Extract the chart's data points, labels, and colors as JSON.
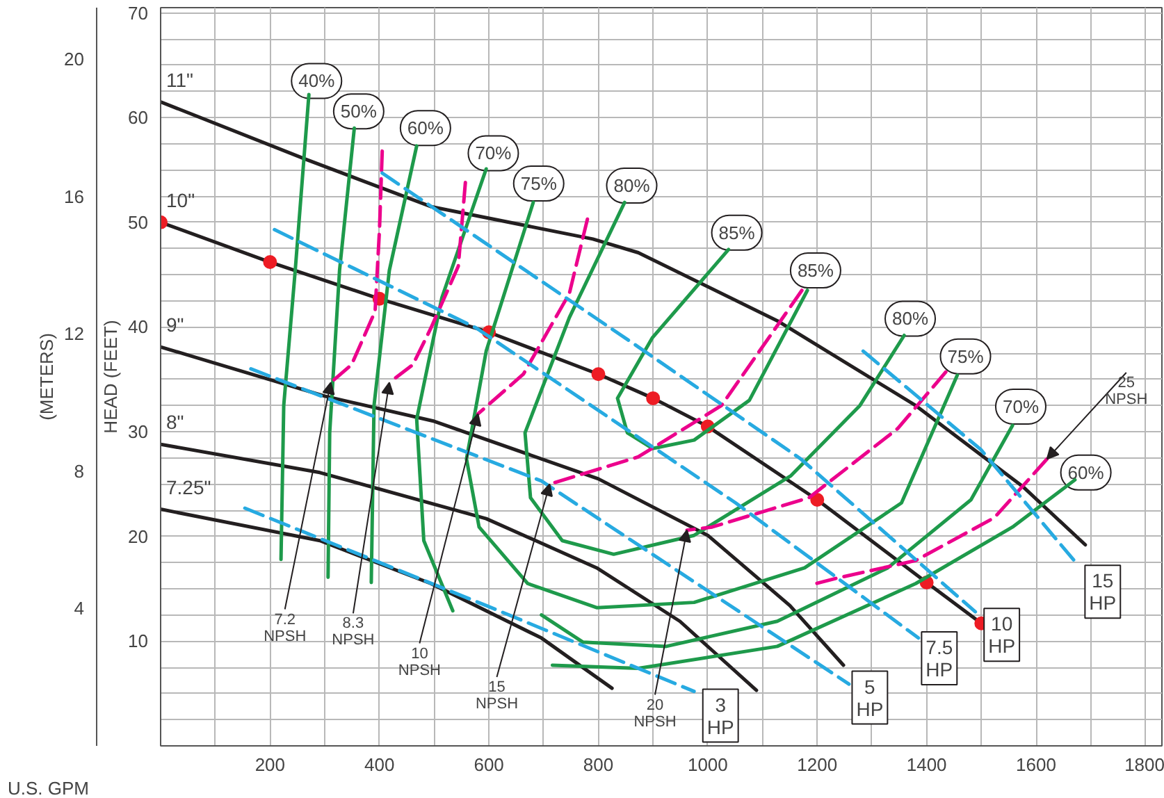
{
  "chart_data": {
    "type": "line",
    "xlabel": "U.S. GPM",
    "ylabel": "HEAD (FEET)",
    "y2label": "(METERS)",
    "xlim": [
      0,
      1830
    ],
    "ylim": [
      0,
      70.5
    ],
    "y2lim": [
      0,
      21.5
    ],
    "xticks": [
      {
        "value": 100,
        "label": null
      },
      200,
      {
        "value": 300,
        "label": null
      },
      400,
      {
        "value": 500,
        "label": null
      },
      600,
      {
        "value": 700,
        "label": null
      },
      800,
      {
        "value": 900,
        "label": null
      },
      1000,
      {
        "value": 1100,
        "label": null
      },
      1200,
      {
        "value": 1300,
        "label": null
      },
      1400,
      {
        "value": 1500,
        "label": null
      },
      1600,
      {
        "value": 1700,
        "label": null
      },
      1800
    ],
    "yticks": [
      {
        "value": 2.5,
        "label": null
      },
      {
        "value": 5,
        "label": null
      },
      {
        "value": 7.5,
        "label": null
      },
      10,
      {
        "value": 12.5,
        "label": null
      },
      {
        "value": 15,
        "label": null
      },
      {
        "value": 17.5,
        "label": null
      },
      20,
      {
        "value": 22.5,
        "label": null
      },
      {
        "value": 25,
        "label": null
      },
      {
        "value": 27.5,
        "label": null
      },
      30,
      {
        "value": 32.5,
        "label": null
      },
      {
        "value": 35,
        "label": null
      },
      {
        "value": 37.5,
        "label": null
      },
      40,
      {
        "value": 42.5,
        "label": null
      },
      {
        "value": 45,
        "label": null
      },
      {
        "value": 47.5,
        "label": null
      },
      50,
      {
        "value": 52.5,
        "label": null
      },
      {
        "value": 55,
        "label": null
      },
      {
        "value": 57.5,
        "label": null
      },
      60,
      {
        "value": 62.5,
        "label": null
      },
      {
        "value": 65,
        "label": null
      },
      {
        "value": 67.5,
        "label": null
      },
      70
    ],
    "y2ticks": [
      4,
      8,
      12,
      16,
      20
    ],
    "grid": true,
    "series": [
      {
        "name": "11\"",
        "color": "#231f20",
        "x": [
          0,
          266,
          494,
          790,
          873,
          1127,
          1380,
          1575,
          1690
        ],
        "values": [
          61.5,
          56,
          51.5,
          48.4,
          47.1,
          40.6,
          32.5,
          24.8,
          19.2
        ]
      },
      {
        "name": "10\"",
        "color": "#231f20",
        "x": [
          0,
          200,
          400,
          600,
          800,
          900,
          1000,
          1200,
          1400,
          1500
        ],
        "values": [
          50,
          46.2,
          42.7,
          39.5,
          35.5,
          33.2,
          30.5,
          23.5,
          15.6,
          11.7
        ]
      },
      {
        "name": "9\"",
        "color": "#231f20",
        "x": [
          0,
          300,
          500,
          800,
          1000,
          1150,
          1248
        ],
        "values": [
          38.1,
          33.4,
          31,
          25.5,
          20.1,
          13.4,
          7.7
        ]
      },
      {
        "name": "8\"",
        "color": "#231f20",
        "x": [
          0,
          291,
          595,
          797,
          949,
          1089
        ],
        "values": [
          28.8,
          26.1,
          21.7,
          17,
          11.9,
          5.3
        ]
      },
      {
        "name": "7.25\"",
        "color": "#231f20",
        "x": [
          0,
          291,
          494,
          696,
          825
        ],
        "values": [
          22.6,
          19.6,
          15.5,
          10.3,
          5.5
        ]
      },
      {
        "type": "scatter",
        "marker": "circle",
        "color": "#ed1c24",
        "x": [
          0,
          200,
          400,
          600,
          800,
          900,
          1000,
          1200,
          1400,
          1500
        ],
        "values": [
          50,
          46.2,
          42.7,
          39.5,
          35.5,
          33.2,
          30.5,
          23.5,
          15.6,
          11.7
        ]
      },
      {
        "color": "#1e9a4b",
        "x": [
          271,
          246,
          225,
          220
        ],
        "values": [
          62.2,
          45.4,
          32.5,
          17.8
        ]
      },
      {
        "color": "#1e9a4b",
        "x": [
          354,
          327,
          309,
          306
        ],
        "values": [
          59,
          45.4,
          29.9,
          16.1
        ]
      },
      {
        "color": "#1e9a4b",
        "x": [
          468,
          418,
          390,
          385
        ],
        "values": [
          57.3,
          45.4,
          32.5,
          15.6
        ]
      },
      {
        "color": "#1e9a4b",
        "x": [
          595,
          514,
          468,
          481,
          534
        ],
        "values": [
          55.1,
          42.8,
          31.2,
          19.6,
          12.9
        ]
      },
      {
        "color": "#1e9a4b",
        "x": [
          681,
          595,
          559,
          582,
          671,
          797,
          975,
          1177,
          1354,
          1456
        ],
        "values": [
          51.9,
          37.7,
          27.4,
          20.9,
          15.5,
          13.2,
          13.7,
          17,
          23.2,
          35.4
        ]
      },
      {
        "color": "#1e9a4b",
        "x": [
          848,
          747,
          666,
          676,
          734,
          828,
          975,
          1152,
          1278,
          1359
        ],
        "values": [
          51.9,
          40.9,
          29.9,
          23.7,
          19.6,
          18.3,
          20.1,
          25.8,
          32.5,
          39.2
        ]
      },
      {
        "color": "#1e9a4b",
        "x": [
          1038,
          899,
          835,
          853,
          899,
          975,
          1076,
          1182
        ],
        "values": [
          47.4,
          39,
          33.2,
          29.9,
          28.4,
          29.2,
          33,
          43.5
        ]
      },
      {
        "color": "#1e9a4b",
        "x": [
          696,
          772,
          924,
          1127,
          1329,
          1481,
          1557
        ],
        "values": [
          12.5,
          9.9,
          9.5,
          11.9,
          17,
          23.5,
          30.6
        ]
      },
      {
        "color": "#1e9a4b",
        "x": [
          716,
          873,
          1127,
          1380,
          1557,
          1671
        ],
        "values": [
          7.7,
          7.4,
          9.5,
          15.5,
          20.9,
          25.4
        ]
      },
      {
        "color": "#ec008c",
        "line_style": "dashed",
        "x": [
          405,
          400,
          392,
          349,
          311
        ],
        "values": [
          56.8,
          49.3,
          41.5,
          36.4,
          34.7
        ]
      },
      {
        "color": "#ec008c",
        "line_style": "dashed",
        "x": [
          557,
          544,
          494,
          461,
          418
        ],
        "values": [
          53.8,
          45.8,
          39.9,
          36.4,
          34.7
        ]
      },
      {
        "color": "#ec008c",
        "line_style": "dashed",
        "x": [
          780,
          747,
          663,
          580
        ],
        "values": [
          50.3,
          43.2,
          35.5,
          31.7
        ]
      },
      {
        "color": "#ec008c",
        "line_style": "dashed",
        "x": [
          1172,
          1025,
          873,
          711
        ],
        "values": [
          43.5,
          32.5,
          27.6,
          25
        ]
      },
      {
        "color": "#ec008c",
        "line_style": "dashed",
        "x": [
          1435,
          1347,
          1185,
          1008,
          962
        ],
        "values": [
          35.7,
          30.3,
          23.7,
          20.9,
          20.6
        ]
      },
      {
        "color": "#ec008c",
        "line_style": "dashed",
        "x": [
          1620,
          1524,
          1380,
          1235,
          1190
        ],
        "values": [
          27.4,
          21.8,
          17.7,
          16,
          15.4
        ]
      },
      {
        "name": "3 HP",
        "color": "#27aae1",
        "line_style": "dashed",
        "x": [
          154,
          595,
          975
        ],
        "values": [
          22.7,
          13.4,
          5.2
        ]
      },
      {
        "name": "5 HP",
        "color": "#27aae1",
        "line_style": "dashed",
        "x": [
          165,
          696,
          1258
        ],
        "values": [
          36,
          25.3,
          5.9
        ]
      },
      {
        "name": "7.5 HP",
        "color": "#27aae1",
        "line_style": "dashed",
        "x": [
          208,
          577,
          1051,
          1385
        ],
        "values": [
          49.3,
          39.9,
          23.2,
          10.3
        ]
      },
      {
        "name": "10 HP",
        "color": "#27aae1",
        "line_style": "dashed",
        "x": [
          405,
          873,
          1170,
          1489
        ],
        "values": [
          54.7,
          38.1,
          27.4,
          12.8
        ]
      },
      {
        "name": "15 HP",
        "color": "#27aae1",
        "line_style": "dashed",
        "x": [
          1284,
          1499,
          1676
        ],
        "values": [
          37.7,
          28.3,
          17.3
        ]
      }
    ],
    "annotations": [
      {
        "text": "40%",
        "x": 285,
        "y": 63.5
      },
      {
        "text": "50%",
        "x": 362,
        "y": 60.6
      },
      {
        "text": "60%",
        "x": 484,
        "y": 59
      },
      {
        "text": "70%",
        "x": 608,
        "y": 56.6
      },
      {
        "text": "75%",
        "x": 691,
        "y": 53.7
      },
      {
        "text": "80%",
        "x": 861,
        "y": 53.5
      },
      {
        "text": "85%",
        "x": 1053,
        "y": 49
      },
      {
        "text": "85%",
        "x": 1197,
        "y": 45.4
      },
      {
        "text": "80%",
        "x": 1370,
        "y": 40.8
      },
      {
        "text": "75%",
        "x": 1471,
        "y": 37.2
      },
      {
        "text": "70%",
        "x": 1572,
        "y": 32.4
      },
      {
        "text": "60%",
        "x": 1691,
        "y": 26.1
      },
      {
        "text": "7.2 NPSH",
        "x": 311,
        "y": 34.7
      },
      {
        "text": "8.3 NPSH",
        "x": 418,
        "y": 34.7
      },
      {
        "text": "10 NPSH",
        "x": 580,
        "y": 31.7
      },
      {
        "text": "15 NPSH",
        "x": 711,
        "y": 25
      },
      {
        "text": "20 NPSH",
        "x": 962,
        "y": 20.6
      },
      {
        "text": "25 NPSH",
        "x": 1620,
        "y": 27.4
      }
    ]
  }
}
